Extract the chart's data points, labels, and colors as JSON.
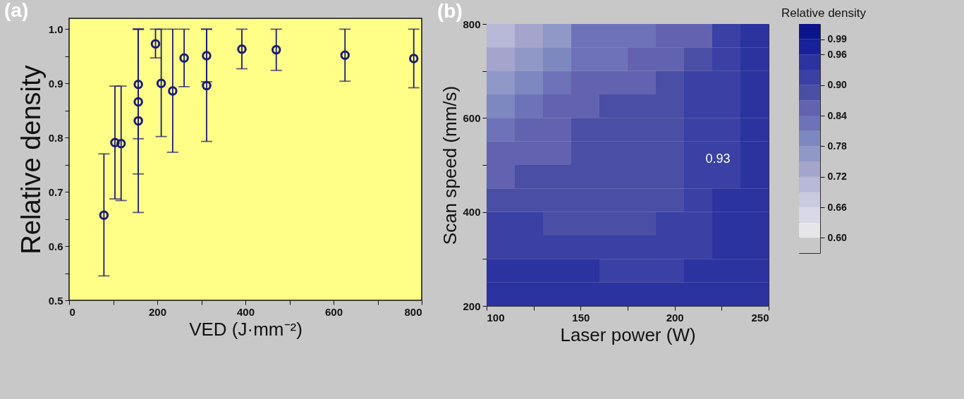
{
  "chart_data": [
    {
      "type": "scatter",
      "title": "(a)",
      "xlabel": "VED (J·mm⁻²)",
      "ylabel": "Relative density",
      "color": "#1a1a78",
      "marker": "circle",
      "x": [
        79,
        104,
        118,
        157,
        157,
        157,
        196,
        209,
        235,
        261,
        312,
        312,
        392,
        470,
        626,
        782
      ],
      "values": [
        0.657,
        0.791,
        0.789,
        0.898,
        0.866,
        0.831,
        0.973,
        0.9,
        0.886,
        0.947,
        0.951,
        0.896,
        0.963,
        0.962,
        0.952,
        0.946
      ],
      "errors": [
        [
          0.545,
          0.77
        ],
        [
          0.687,
          0.895
        ],
        [
          0.684,
          0.895
        ],
        [
          0.798,
          1.0
        ],
        [
          0.733,
          1.0
        ],
        [
          0.662,
          1.0
        ],
        [
          0.947,
          1.0
        ],
        [
          0.802,
          1.0
        ],
        [
          0.773,
          1.0
        ],
        [
          0.894,
          1.0
        ],
        [
          0.903,
          1.0
        ],
        [
          0.793,
          1.0
        ],
        [
          0.927,
          1.0
        ],
        [
          0.924,
          1.0
        ],
        [
          0.904,
          1.0
        ],
        [
          0.892,
          1.0
        ]
      ],
      "xlim": [
        0,
        800
      ],
      "xticks": [
        0,
        {
          "value": 100,
          "label": null
        },
        200,
        {
          "value": 300,
          "label": null
        },
        400,
        {
          "value": 500,
          "label": null
        },
        600,
        {
          "value": 700,
          "label": null
        },
        800
      ],
      "ylim": [
        0.5,
        1.02
      ],
      "yticks": [
        0.5,
        {
          "value": 0.55,
          "label": null
        },
        0.6,
        {
          "value": 0.65,
          "label": null
        },
        0.7,
        {
          "value": 0.75,
          "label": null
        },
        0.8,
        {
          "value": 0.85,
          "label": null
        },
        0.9,
        {
          "value": 0.95,
          "label": null
        },
        {
          "value": 1.0,
          "label": "1.0"
        }
      ]
    },
    {
      "type": "heatmap",
      "title": "(b)",
      "xlabel": "Laser power (W)",
      "ylabel": "Scan speed (mm/s)",
      "clabel": "Relative density",
      "x": [
        107.5,
        122.5,
        137.5,
        152.5,
        167.5,
        182.5,
        197.5,
        212.5,
        227.5,
        242.5
      ],
      "y": [
        775,
        725,
        675,
        625,
        575,
        525,
        475,
        425,
        375,
        325,
        275,
        225
      ],
      "cells": [
        [
          0.705,
          0.735,
          0.765,
          0.825,
          0.825,
          0.825,
          0.855,
          0.855,
          0.915,
          0.945
        ],
        [
          0.735,
          0.765,
          0.795,
          0.825,
          0.825,
          0.855,
          0.855,
          0.885,
          0.915,
          0.945
        ],
        [
          0.765,
          0.795,
          0.825,
          0.855,
          0.855,
          0.855,
          0.885,
          0.915,
          0.915,
          0.945
        ],
        [
          0.795,
          0.825,
          0.855,
          0.855,
          0.885,
          0.885,
          0.885,
          0.915,
          0.915,
          0.945
        ],
        [
          0.825,
          0.855,
          0.855,
          0.885,
          0.885,
          0.885,
          0.885,
          0.915,
          0.915,
          0.945
        ],
        [
          0.855,
          0.855,
          0.855,
          0.885,
          0.885,
          0.885,
          0.885,
          0.915,
          0.915,
          0.945
        ],
        [
          0.855,
          0.885,
          0.885,
          0.885,
          0.885,
          0.885,
          0.885,
          0.915,
          0.915,
          0.945
        ],
        [
          0.885,
          0.885,
          0.885,
          0.885,
          0.885,
          0.885,
          0.885,
          0.915,
          0.945,
          0.945
        ],
        [
          0.915,
          0.915,
          0.885,
          0.885,
          0.885,
          0.885,
          0.915,
          0.915,
          0.945,
          0.945
        ],
        [
          0.915,
          0.915,
          0.915,
          0.915,
          0.915,
          0.915,
          0.915,
          0.915,
          0.945,
          0.945
        ],
        [
          0.945,
          0.945,
          0.945,
          0.945,
          0.915,
          0.915,
          0.915,
          0.945,
          0.945,
          0.945
        ],
        [
          0.945,
          0.945,
          0.945,
          0.945,
          0.945,
          0.945,
          0.945,
          0.945,
          0.945,
          0.945
        ]
      ],
      "colors": [
        "#c8c8c8",
        "#e6e6ea",
        "#d8d8e8",
        "#cacae0",
        "#b8b8d8",
        "#a4a4cc",
        "#9098c8",
        "#7e88c0",
        "#6e72b8",
        "#6262b0",
        "#4a4ea4",
        "#3a40a4",
        "#2a33a0",
        "#18209a",
        "#0c148c"
      ],
      "clim": [
        0.57,
        1.02
      ],
      "cticks": [
        {
          "value": 0.6,
          "label": "0.60"
        },
        0.66,
        0.72,
        0.78,
        0.84,
        {
          "value": 0.9,
          "label": "0.90"
        },
        0.96,
        0.99
      ],
      "xlim": [
        100,
        250
      ],
      "xticks": [
        100,
        {
          "value": 125,
          "label": null
        },
        150,
        {
          "value": 175,
          "label": null
        },
        200,
        {
          "value": 225,
          "label": null
        },
        250
      ],
      "ylim": [
        200,
        800
      ],
      "yticks": [
        200,
        {
          "value": 300,
          "label": null
        },
        400,
        {
          "value": 500,
          "label": null
        },
        600,
        {
          "value": 700,
          "label": null
        },
        800
      ],
      "annotations": [
        "0.93"
      ]
    }
  ]
}
